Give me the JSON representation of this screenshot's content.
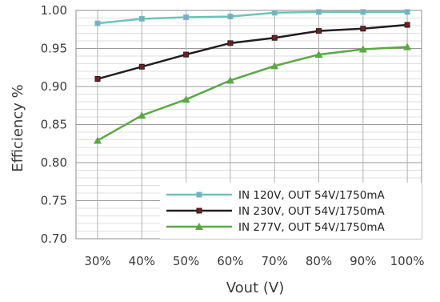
{
  "chart_data": {
    "type": "line",
    "xlabel": "Vout (V)",
    "ylabel": "Efficiency %",
    "categories": [
      "30%",
      "40%",
      "50%",
      "60%",
      "70%",
      "80%",
      "90%",
      "100%"
    ],
    "ylim": [
      0.7,
      1.0
    ],
    "yticks": [
      "0.70",
      "0.75",
      "0.80",
      "0.85",
      "0.90",
      "0.95",
      "1.00"
    ],
    "grid": true,
    "legend_position": "bottom-right",
    "series": [
      {
        "name": "IN 120V, OUT 54V/1750mA",
        "color": "#6cc4b8",
        "marker": "square",
        "values": [
          0.983,
          0.989,
          0.991,
          0.992,
          0.997,
          0.998,
          0.998,
          0.998
        ]
      },
      {
        "name": "IN 230V, OUT 54V/1750mA",
        "color": "#231f20",
        "marker": "square",
        "values": [
          0.91,
          0.926,
          0.942,
          0.957,
          0.964,
          0.973,
          0.976,
          0.981
        ]
      },
      {
        "name": "IN 277V, OUT 54V/1750mA",
        "color": "#5aa845",
        "marker": "triangle",
        "values": [
          0.829,
          0.862,
          0.883,
          0.908,
          0.927,
          0.942,
          0.949,
          0.952
        ]
      }
    ]
  }
}
